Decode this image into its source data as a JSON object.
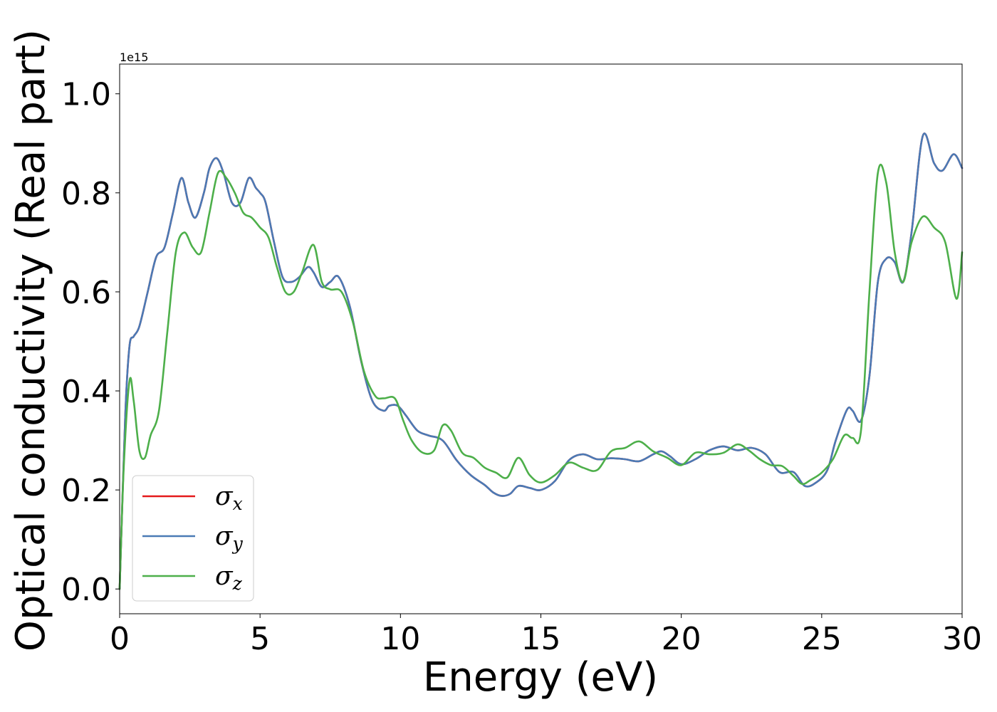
{
  "chart_data": {
    "type": "line",
    "xlabel": "Energy (eV)",
    "ylabel": "Optical conductivity (Real part)",
    "offset_label": "1e15",
    "xlim": [
      0,
      30
    ],
    "ylim": [
      -0.05,
      1.06
    ],
    "x_ticks": [
      0,
      5,
      10,
      15,
      20,
      25,
      30
    ],
    "x_tick_labels": [
      "0",
      "5",
      "10",
      "15",
      "20",
      "25",
      "30"
    ],
    "y_ticks": [
      0.0,
      0.2,
      0.4,
      0.6,
      0.8,
      1.0
    ],
    "y_tick_labels": [
      "0.0",
      "0.2",
      "0.4",
      "0.6",
      "0.8",
      "1.0"
    ],
    "grid": false,
    "legend_position": "lower-left",
    "series": [
      {
        "name": "σx",
        "symbol": "σ",
        "subscript": "x",
        "color": "#e41a1c",
        "x": [
          0,
          0.2,
          0.35,
          0.5,
          0.7,
          1.0,
          1.3,
          1.6,
          1.9,
          2.2,
          2.45,
          2.7,
          3.0,
          3.2,
          3.45,
          3.7,
          4.0,
          4.3,
          4.6,
          4.85,
          5.0,
          5.2,
          5.5,
          5.8,
          6.1,
          6.4,
          6.7,
          6.9,
          7.2,
          7.5,
          7.8,
          8.2,
          8.6,
          9.0,
          9.4,
          9.6,
          9.9,
          10.2,
          10.6,
          11.0,
          11.5,
          12.0,
          12.5,
          13.0,
          13.3,
          13.6,
          13.9,
          14.2,
          14.6,
          15.0,
          15.5,
          16.0,
          16.5,
          17.0,
          17.5,
          18.0,
          18.5,
          19.0,
          19.3,
          19.6,
          20.0,
          20.5,
          21.0,
          21.5,
          22.0,
          22.5,
          23.0,
          23.5,
          24.0,
          24.4,
          24.8,
          25.2,
          25.5,
          25.9,
          26.1,
          26.4,
          26.7,
          27.0,
          27.3,
          27.6,
          27.9,
          28.2,
          28.6,
          29.0,
          29.3,
          29.7,
          30.0
        ],
        "y": [
          0.0,
          0.35,
          0.49,
          0.51,
          0.53,
          0.6,
          0.67,
          0.69,
          0.76,
          0.83,
          0.78,
          0.75,
          0.8,
          0.85,
          0.87,
          0.84,
          0.78,
          0.78,
          0.83,
          0.81,
          0.8,
          0.78,
          0.7,
          0.63,
          0.62,
          0.63,
          0.65,
          0.64,
          0.61,
          0.62,
          0.63,
          0.57,
          0.46,
          0.38,
          0.36,
          0.37,
          0.37,
          0.35,
          0.32,
          0.31,
          0.3,
          0.26,
          0.23,
          0.21,
          0.195,
          0.188,
          0.192,
          0.208,
          0.204,
          0.2,
          0.218,
          0.26,
          0.272,
          0.262,
          0.264,
          0.262,
          0.258,
          0.272,
          0.278,
          0.268,
          0.252,
          0.262,
          0.28,
          0.288,
          0.28,
          0.285,
          0.272,
          0.236,
          0.236,
          0.208,
          0.215,
          0.24,
          0.3,
          0.362,
          0.36,
          0.34,
          0.43,
          0.62,
          0.667,
          0.66,
          0.62,
          0.72,
          0.915,
          0.86,
          0.845,
          0.878,
          0.85
        ]
      },
      {
        "name": "σy",
        "symbol": "σ",
        "subscript": "y",
        "color": "#4a7ab5",
        "x": [
          0,
          0.2,
          0.35,
          0.5,
          0.7,
          1.0,
          1.3,
          1.6,
          1.9,
          2.2,
          2.45,
          2.7,
          3.0,
          3.2,
          3.45,
          3.7,
          4.0,
          4.3,
          4.6,
          4.85,
          5.0,
          5.2,
          5.5,
          5.8,
          6.1,
          6.4,
          6.7,
          6.9,
          7.2,
          7.5,
          7.8,
          8.2,
          8.6,
          9.0,
          9.4,
          9.6,
          9.9,
          10.2,
          10.6,
          11.0,
          11.5,
          12.0,
          12.5,
          13.0,
          13.3,
          13.6,
          13.9,
          14.2,
          14.6,
          15.0,
          15.5,
          16.0,
          16.5,
          17.0,
          17.5,
          18.0,
          18.5,
          19.0,
          19.3,
          19.6,
          20.0,
          20.5,
          21.0,
          21.5,
          22.0,
          22.5,
          23.0,
          23.5,
          24.0,
          24.4,
          24.8,
          25.2,
          25.5,
          25.9,
          26.1,
          26.4,
          26.7,
          27.0,
          27.3,
          27.6,
          27.9,
          28.2,
          28.6,
          29.0,
          29.3,
          29.7,
          30.0
        ],
        "y": [
          0.0,
          0.35,
          0.49,
          0.51,
          0.53,
          0.6,
          0.67,
          0.69,
          0.76,
          0.83,
          0.78,
          0.75,
          0.8,
          0.85,
          0.87,
          0.84,
          0.78,
          0.78,
          0.83,
          0.81,
          0.8,
          0.78,
          0.7,
          0.63,
          0.62,
          0.63,
          0.65,
          0.64,
          0.61,
          0.62,
          0.63,
          0.57,
          0.46,
          0.38,
          0.36,
          0.37,
          0.37,
          0.35,
          0.32,
          0.31,
          0.3,
          0.26,
          0.23,
          0.21,
          0.195,
          0.188,
          0.192,
          0.208,
          0.204,
          0.2,
          0.218,
          0.26,
          0.272,
          0.262,
          0.264,
          0.262,
          0.258,
          0.272,
          0.278,
          0.268,
          0.252,
          0.262,
          0.28,
          0.288,
          0.28,
          0.285,
          0.272,
          0.236,
          0.236,
          0.208,
          0.215,
          0.24,
          0.3,
          0.362,
          0.36,
          0.34,
          0.43,
          0.62,
          0.667,
          0.66,
          0.62,
          0.72,
          0.915,
          0.86,
          0.845,
          0.878,
          0.85
        ]
      },
      {
        "name": "σz",
        "symbol": "σ",
        "subscript": "z",
        "color": "#4daf4a",
        "x": [
          0,
          0.15,
          0.35,
          0.5,
          0.7,
          0.9,
          1.1,
          1.4,
          1.7,
          2.0,
          2.3,
          2.6,
          2.9,
          3.2,
          3.5,
          3.8,
          4.1,
          4.4,
          4.7,
          5.0,
          5.3,
          5.6,
          5.9,
          6.2,
          6.5,
          6.9,
          7.2,
          7.5,
          7.9,
          8.3,
          8.7,
          9.1,
          9.4,
          9.8,
          10.1,
          10.4,
          10.8,
          11.2,
          11.5,
          11.8,
          12.2,
          12.6,
          13.0,
          13.4,
          13.8,
          14.2,
          14.6,
          15.0,
          15.5,
          16.0,
          16.5,
          17.0,
          17.5,
          18.0,
          18.5,
          19.0,
          19.5,
          20.0,
          20.5,
          21.0,
          21.5,
          22.0,
          22.4,
          22.8,
          23.2,
          23.6,
          24.0,
          24.3,
          24.6,
          25.0,
          25.4,
          25.8,
          26.1,
          26.4,
          26.7,
          27.0,
          27.3,
          27.6,
          27.9,
          28.2,
          28.6,
          29.0,
          29.4,
          29.8,
          30.0
        ],
        "y": [
          0.0,
          0.25,
          0.42,
          0.38,
          0.28,
          0.265,
          0.31,
          0.36,
          0.52,
          0.68,
          0.72,
          0.69,
          0.68,
          0.76,
          0.84,
          0.83,
          0.8,
          0.76,
          0.75,
          0.73,
          0.71,
          0.65,
          0.6,
          0.6,
          0.64,
          0.695,
          0.62,
          0.605,
          0.6,
          0.54,
          0.44,
          0.39,
          0.385,
          0.385,
          0.34,
          0.3,
          0.275,
          0.28,
          0.33,
          0.32,
          0.275,
          0.265,
          0.245,
          0.235,
          0.225,
          0.265,
          0.23,
          0.215,
          0.23,
          0.255,
          0.245,
          0.24,
          0.278,
          0.285,
          0.298,
          0.278,
          0.265,
          0.25,
          0.275,
          0.272,
          0.275,
          0.292,
          0.28,
          0.262,
          0.25,
          0.248,
          0.228,
          0.212,
          0.22,
          0.235,
          0.262,
          0.31,
          0.305,
          0.32,
          0.6,
          0.84,
          0.82,
          0.68,
          0.62,
          0.7,
          0.752,
          0.73,
          0.7,
          0.586,
          0.68
        ]
      }
    ]
  }
}
